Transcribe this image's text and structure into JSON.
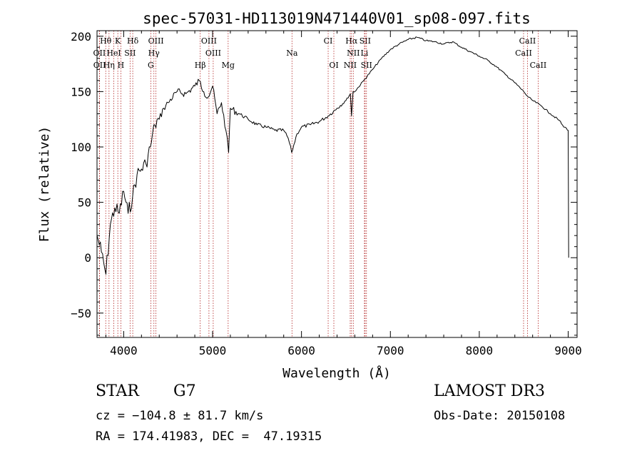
{
  "chart_data": {
    "type": "line",
    "title": "spec-57031-HD113019N471440V01_sp08-097.fits",
    "xlabel": "Wavelength (Å)",
    "ylabel": "Flux (relative)",
    "xlim": [
      3700,
      9100
    ],
    "ylim": [
      -72,
      205
    ],
    "xticks": [
      4000,
      5000,
      6000,
      7000,
      8000,
      9000
    ],
    "yticks": [
      -50,
      0,
      50,
      100,
      150,
      200
    ],
    "grid": false,
    "series": [
      {
        "color": "#000000",
        "x": [
          3700,
          3750,
          3800,
          3850,
          3900,
          3950,
          4000,
          4050,
          4100,
          4150,
          4200,
          4250,
          4300,
          4350,
          4400,
          4450,
          4500,
          4600,
          4700,
          4800,
          4850,
          4900,
          4950,
          5000,
          5050,
          5100,
          5150,
          5180,
          5200,
          5300,
          5400,
          5500,
          5600,
          5700,
          5800,
          5850,
          5890,
          5950,
          6000,
          6100,
          6200,
          6300,
          6400,
          6500,
          6550,
          6563,
          6580,
          6600,
          6700,
          6800,
          6900,
          7000,
          7100,
          7200,
          7300,
          7400,
          7500,
          7600,
          7700,
          7800,
          7900,
          8000,
          8100,
          8200,
          8300,
          8400,
          8500,
          8550,
          8600,
          8700,
          8800,
          8900,
          8950,
          8980,
          9000,
          9005
        ],
        "y": [
          20,
          5,
          -15,
          30,
          45,
          40,
          60,
          40,
          55,
          75,
          80,
          85,
          100,
          120,
          125,
          135,
          140,
          150,
          148,
          155,
          160,
          150,
          145,
          155,
          130,
          140,
          115,
          95,
          135,
          130,
          125,
          120,
          118,
          115,
          115,
          108,
          95,
          112,
          118,
          120,
          123,
          128,
          135,
          142,
          148,
          128,
          150,
          150,
          160,
          170,
          180,
          188,
          193,
          197,
          199,
          196,
          195,
          193,
          195,
          190,
          186,
          182,
          178,
          172,
          165,
          158,
          150,
          145,
          142,
          137,
          130,
          124,
          118,
          117,
          115,
          0
        ]
      }
    ],
    "lines": [
      {
        "label": "Hθ",
        "x": 3798,
        "row": 1
      },
      {
        "label": "K",
        "x": 3934,
        "row": 1
      },
      {
        "label": "Hδ",
        "x": 4102,
        "row": 1
      },
      {
        "label": "OIII",
        "x": 4363,
        "row": 1
      },
      {
        "label": "OIII",
        "x": 4959,
        "row": 1
      },
      {
        "label": "CI",
        "x": 6300,
        "row": 1
      },
      {
        "label": "Hα",
        "x": 6563,
        "row": 1
      },
      {
        "label": "SII",
        "x": 6716,
        "row": 1
      },
      {
        "label": "CaII",
        "x": 8542,
        "row": 1
      },
      {
        "label": "OII",
        "x": 3727,
        "row": 2
      },
      {
        "label": "HeI",
        "x": 3889,
        "row": 2
      },
      {
        "label": "SII",
        "x": 4072,
        "row": 2
      },
      {
        "label": "Hγ",
        "x": 4340,
        "row": 2
      },
      {
        "label": "OIII",
        "x": 5007,
        "row": 2
      },
      {
        "label": "Na",
        "x": 5893,
        "row": 2
      },
      {
        "label": "NII",
        "x": 6583,
        "row": 2
      },
      {
        "label": "Li",
        "x": 6708,
        "row": 2
      },
      {
        "label": "CaII",
        "x": 8498,
        "row": 2
      },
      {
        "label": "OII",
        "x": 3729,
        "row": 3
      },
      {
        "label": "Hη",
        "x": 3835,
        "row": 3
      },
      {
        "label": "H",
        "x": 3968,
        "row": 3
      },
      {
        "label": "G",
        "x": 4305,
        "row": 3
      },
      {
        "label": "Hβ",
        "x": 4861,
        "row": 3
      },
      {
        "label": "Mg",
        "x": 5175,
        "row": 3
      },
      {
        "label": "OI",
        "x": 6364,
        "row": 3
      },
      {
        "label": "NII",
        "x": 6548,
        "row": 3
      },
      {
        "label": "SII",
        "x": 6731,
        "row": 3
      },
      {
        "label": "CaII",
        "x": 8662,
        "row": 3
      }
    ]
  },
  "info": {
    "object_class": "STAR",
    "subclass": "G7",
    "cz": "cz = −104.8 ± 81.7 km/s",
    "coords": "RA = 174.41983, DEC =  47.19315",
    "survey": "LAMOST DR3",
    "obs_date": "Obs-Date: 20150108"
  }
}
